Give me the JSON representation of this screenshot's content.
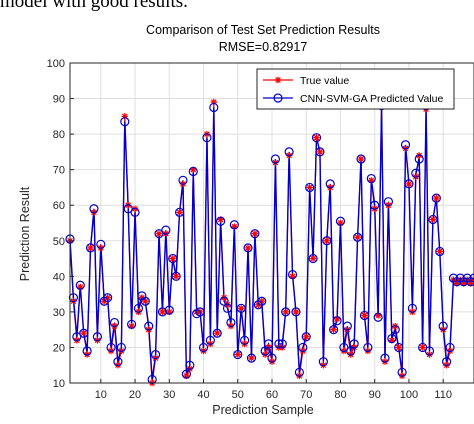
{
  "page": {
    "top_text": "model with good results."
  },
  "chart_data": {
    "type": "line",
    "title": "Comparison of Test Set Prediction Results",
    "subtitle": "RMSE=0.82917",
    "xlabel": "Prediction Sample",
    "ylabel": "Prediction Result",
    "xlim": [
      1,
      119
    ],
    "ylim": [
      10,
      100
    ],
    "xticks": [
      10,
      20,
      30,
      40,
      50,
      60,
      70,
      80,
      90,
      100,
      110
    ],
    "yticks": [
      10,
      20,
      30,
      40,
      50,
      60,
      70,
      80,
      90,
      100
    ],
    "grid": true,
    "legend_position": "top-right",
    "x": [
      1,
      2,
      3,
      4,
      5,
      6,
      7,
      8,
      9,
      10,
      11,
      12,
      13,
      14,
      15,
      16,
      17,
      18,
      19,
      20,
      21,
      22,
      23,
      24,
      25,
      26,
      27,
      28,
      29,
      30,
      31,
      32,
      33,
      34,
      35,
      36,
      37,
      38,
      39,
      40,
      41,
      42,
      43,
      44,
      45,
      46,
      47,
      48,
      49,
      50,
      51,
      52,
      53,
      54,
      55,
      56,
      57,
      58,
      59,
      60,
      61,
      62,
      63,
      64,
      65,
      66,
      67,
      68,
      69,
      70,
      71,
      72,
      73,
      74,
      75,
      76,
      77,
      78,
      79,
      80,
      81,
      82,
      83,
      84,
      85,
      86,
      87,
      88,
      89,
      90,
      91,
      92,
      93,
      94,
      95,
      96,
      97,
      98,
      99,
      100,
      101,
      102,
      103,
      104,
      105,
      106,
      107,
      108,
      109,
      110,
      111,
      112,
      113,
      114,
      115,
      116,
      117,
      118,
      119
    ],
    "series": [
      {
        "name": "True value",
        "color": "#ff0000",
        "marker": "asterisk",
        "values": [
          50,
          33,
          22,
          37,
          24,
          18,
          48,
          58,
          22,
          48,
          33,
          34,
          19,
          26,
          15,
          19,
          85,
          60,
          26,
          59,
          30,
          34,
          33,
          25,
          10,
          17,
          52,
          30,
          52,
          30,
          45,
          40,
          58,
          66,
          12,
          14,
          70,
          30,
          30,
          19,
          80,
          21,
          89,
          24,
          56,
          34,
          32,
          26,
          54,
          18,
          31,
          21,
          48,
          17,
          52,
          32,
          33,
          18,
          20,
          16,
          72,
          20,
          20,
          30,
          74,
          40,
          30,
          12,
          19,
          23,
          65,
          45,
          79,
          75,
          15,
          50,
          65,
          25,
          28,
          55,
          19,
          25,
          18,
          20,
          51,
          73,
          29,
          19,
          67,
          59,
          29,
          88,
          16,
          60,
          22,
          26,
          20,
          12,
          76,
          66,
          30,
          68,
          74,
          20,
          87,
          18,
          56,
          62,
          47,
          25,
          15,
          19,
          39,
          38,
          39,
          38,
          39,
          38,
          39
        ]
      },
      {
        "name": "CNN-SVM-GA Predicted Value",
        "color": "#0000cc",
        "marker": "circle",
        "values": [
          50.5,
          34,
          23,
          37.5,
          24,
          19,
          48,
          59,
          23,
          49,
          33,
          34,
          20,
          27,
          16,
          20,
          83.5,
          59,
          26.5,
          58,
          31,
          34.5,
          33,
          26,
          11,
          18,
          52,
          30,
          53,
          30.5,
          45,
          40,
          58,
          67,
          12.5,
          15,
          69.5,
          29.5,
          30,
          20,
          79,
          22,
          87.5,
          24,
          55.5,
          33,
          31,
          27,
          54.5,
          18,
          31,
          22,
          48,
          17,
          52,
          32,
          33,
          19,
          21,
          17,
          73,
          21,
          21,
          30,
          75,
          40.5,
          30,
          13,
          20,
          23,
          65,
          45,
          79,
          75,
          16,
          50,
          66,
          25,
          27.5,
          55.5,
          20,
          26,
          19,
          21,
          51,
          73,
          29,
          20,
          67.5,
          60,
          28.5,
          88,
          17,
          61,
          22.5,
          25,
          20,
          13,
          77,
          66,
          31,
          69,
          73,
          20,
          88,
          19,
          56,
          62,
          47,
          26,
          16,
          20,
          39.5,
          38.5,
          39.5,
          38.5,
          39.5,
          38.5,
          39.5
        ]
      }
    ]
  }
}
